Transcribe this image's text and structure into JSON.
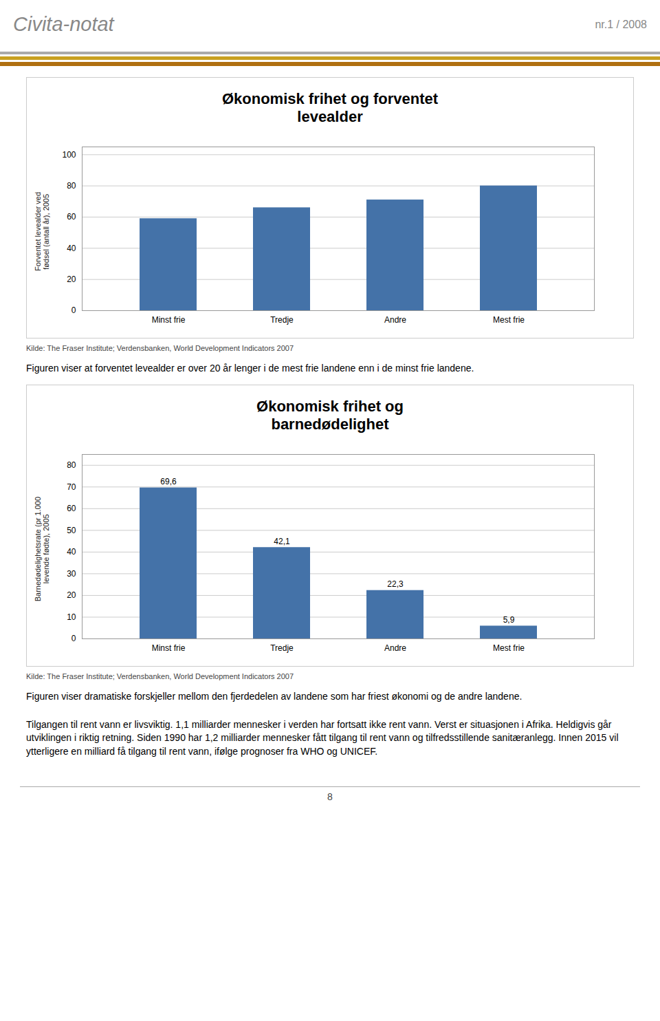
{
  "title": "Civita-notat",
  "subtitle": "nr.1 / 2008",
  "annotations": [
    "Tilgangen til rent vann er livsviktig. 1,1 milliarder mennesker i verden har fortsatt ikke rent vann. Verst er situasjonen i Afrika. Heldigvis går utviklingen i riktig retning. Siden 1990 har 1,2 milliarder mennesker fått tilgang til rent vann og tilfredsstillende sanitæranlegg. Innen 2015 vil ytterligere en milliard få tilgang til rent vann, ifølge prognoser fra WHO og UNICEF.",
    "8"
  ],
  "chart_data": [
    {
      "type": "bar",
      "title": "Økonomisk frihet og forventet\nlevealder",
      "ylabel": "Forventet levealder ved\nfødsel (antall år), 2005",
      "categories": [
        "Minst frie",
        "Tredje",
        "Andre",
        "Mest frie"
      ],
      "values": [
        59,
        66,
        71,
        80
      ],
      "color": "#4472a8",
      "ylim": [
        0,
        105
      ],
      "yticks": [
        0,
        20,
        40,
        60,
        80,
        100
      ],
      "grid": true,
      "annotations": [
        "Kilde: The Fraser Institute; Verdensbanken, World Development Indicators 2007",
        "Figuren viser at forventet levealder er over 20 år lenger i de mest frie landene enn i de minst frie landene."
      ]
    },
    {
      "type": "bar",
      "title": "Økonomisk frihet og\nbarnedødelighet",
      "ylabel": "Barnedødelighetsrate (pr 1.000\nlevende fødte), 2005",
      "categories": [
        "Minst frie",
        "Tredje",
        "Andre",
        "Mest frie"
      ],
      "values": [
        69.6,
        42.1,
        22.3,
        5.9
      ],
      "value_labels": [
        "69,6",
        "42,1",
        "22,3",
        "5,9"
      ],
      "data_labels": true,
      "color": "#4472a8",
      "ylim": [
        0,
        85
      ],
      "yticks": [
        0,
        10,
        20,
        30,
        40,
        50,
        60,
        70,
        80
      ],
      "grid": true,
      "annotations": [
        "Kilde: The Fraser Institute; Verdensbanken, World Development Indicators 2007",
        "Figuren viser dramatiske forskjeller mellom den fjerdedelen av landene som har friest økonomi og de andre landene."
      ]
    }
  ]
}
